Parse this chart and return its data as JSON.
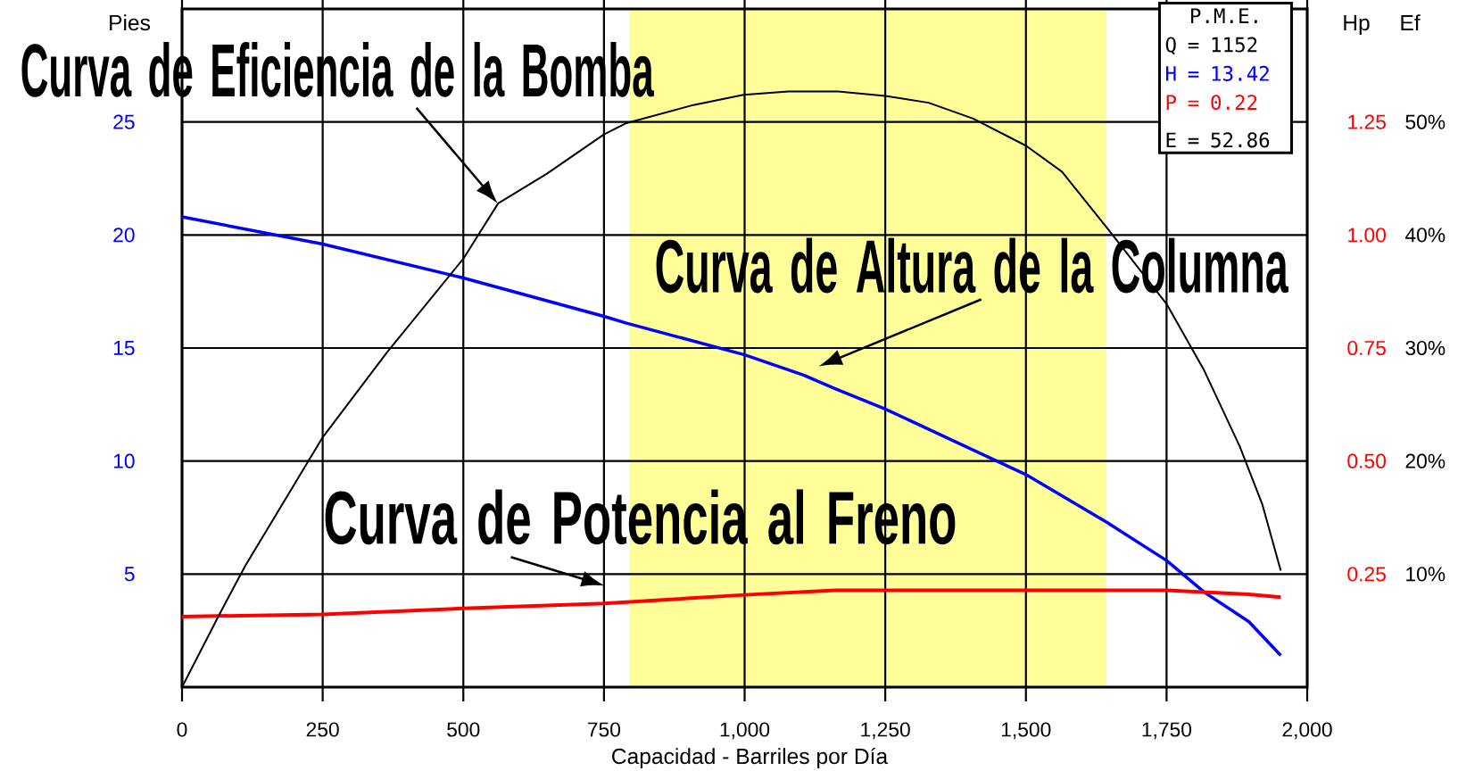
{
  "chart_data": {
    "type": "line",
    "xlabel": "Capacidad - Barriles por Día",
    "ylabel": "Pies",
    "y2label": "Hp",
    "y3label": "Ef",
    "xlim": [
      0,
      2000
    ],
    "xticks": [
      0,
      250,
      500,
      750,
      {
        "value": 1000,
        "label": "1,000"
      },
      {
        "value": 1250,
        "label": "1,250"
      },
      {
        "value": 1500,
        "label": "1,500"
      },
      {
        "value": 1750,
        "label": "1,750"
      },
      {
        "value": 2000,
        "label": "2,000"
      }
    ],
    "ylim": [
      0,
      30
    ],
    "yticks": [
      5,
      10,
      15,
      20,
      25
    ],
    "y2lim": [
      0,
      1.5
    ],
    "y2ticks": [
      {
        "value": 0.25,
        "label": "0.25"
      },
      {
        "value": 0.5,
        "label": "0.50"
      },
      {
        "value": 0.75,
        "label": "0.75"
      },
      {
        "value": 1.0,
        "label": "1.00"
      },
      {
        "value": 1.25,
        "label": "1.25"
      }
    ],
    "y3lim": [
      0,
      60
    ],
    "y3ticks": [
      {
        "value": 10,
        "label": "10%"
      },
      {
        "value": 20,
        "label": "20%"
      },
      {
        "value": 30,
        "label": "30%"
      },
      {
        "value": 40,
        "label": "40%"
      },
      {
        "value": 50,
        "label": "50%"
      }
    ],
    "grid": true,
    "bands": [
      {
        "axis": "x",
        "from": 795,
        "to": 1643,
        "color": "#ffff99"
      }
    ],
    "series": [
      {
        "color": "#0000ff",
        "axis": "y",
        "x": [
          0,
          250,
          500,
          750,
          790,
          1000,
          1105,
          1161,
          1250,
          1500,
          1643,
          1750,
          1817,
          1896,
          1953
        ],
        "values": [
          20.8,
          19.6,
          18.1,
          16.4,
          16.1,
          14.7,
          13.8,
          13.2,
          12.3,
          9.4,
          7.3,
          5.6,
          4.2,
          2.9,
          1.4
        ]
      },
      {
        "color": "#ff0000",
        "axis": "y2",
        "x": [
          0,
          250,
          500,
          750,
          1000,
          1161,
          1250,
          1750,
          1896,
          1953
        ],
        "values": [
          0.156,
          0.161,
          0.174,
          0.185,
          0.204,
          0.214,
          0.214,
          0.214,
          0.205,
          0.199
        ]
      },
      {
        "color": "#000000",
        "axis": "y3",
        "x": [
          0,
          65,
          112,
          250,
          364,
          500,
          562,
          648,
          750,
          790,
          909,
          998,
          1078,
          1166,
          1250,
          1327,
          1406,
          1500,
          1564,
          1651,
          1750,
          1817,
          1880,
          1920,
          1953
        ],
        "values": [
          0,
          6.3,
          10.7,
          22.1,
          29.6,
          37.9,
          42.8,
          45.4,
          48.9,
          49.9,
          51.5,
          52.4,
          52.7,
          52.7,
          52.3,
          51.7,
          50.3,
          47.9,
          45.6,
          40.2,
          33.9,
          28.0,
          21.3,
          16.2,
          10.3
        ]
      }
    ],
    "annotations": [
      {
        "text": "Curva de Eficiencia de la Bomba",
        "x": 561,
        "y": 21.4
      },
      "P.M.E.",
      "Q = 1152",
      "H = 13.42",
      "P = 0.22",
      "E = 52.86",
      {
        "text": "Curva de Altura de la Columna",
        "x": 1132,
        "y": 13.6
      },
      {
        "text": "Curva de Potencia al Freno",
        "x": 751,
        "y": 3.7
      }
    ]
  }
}
